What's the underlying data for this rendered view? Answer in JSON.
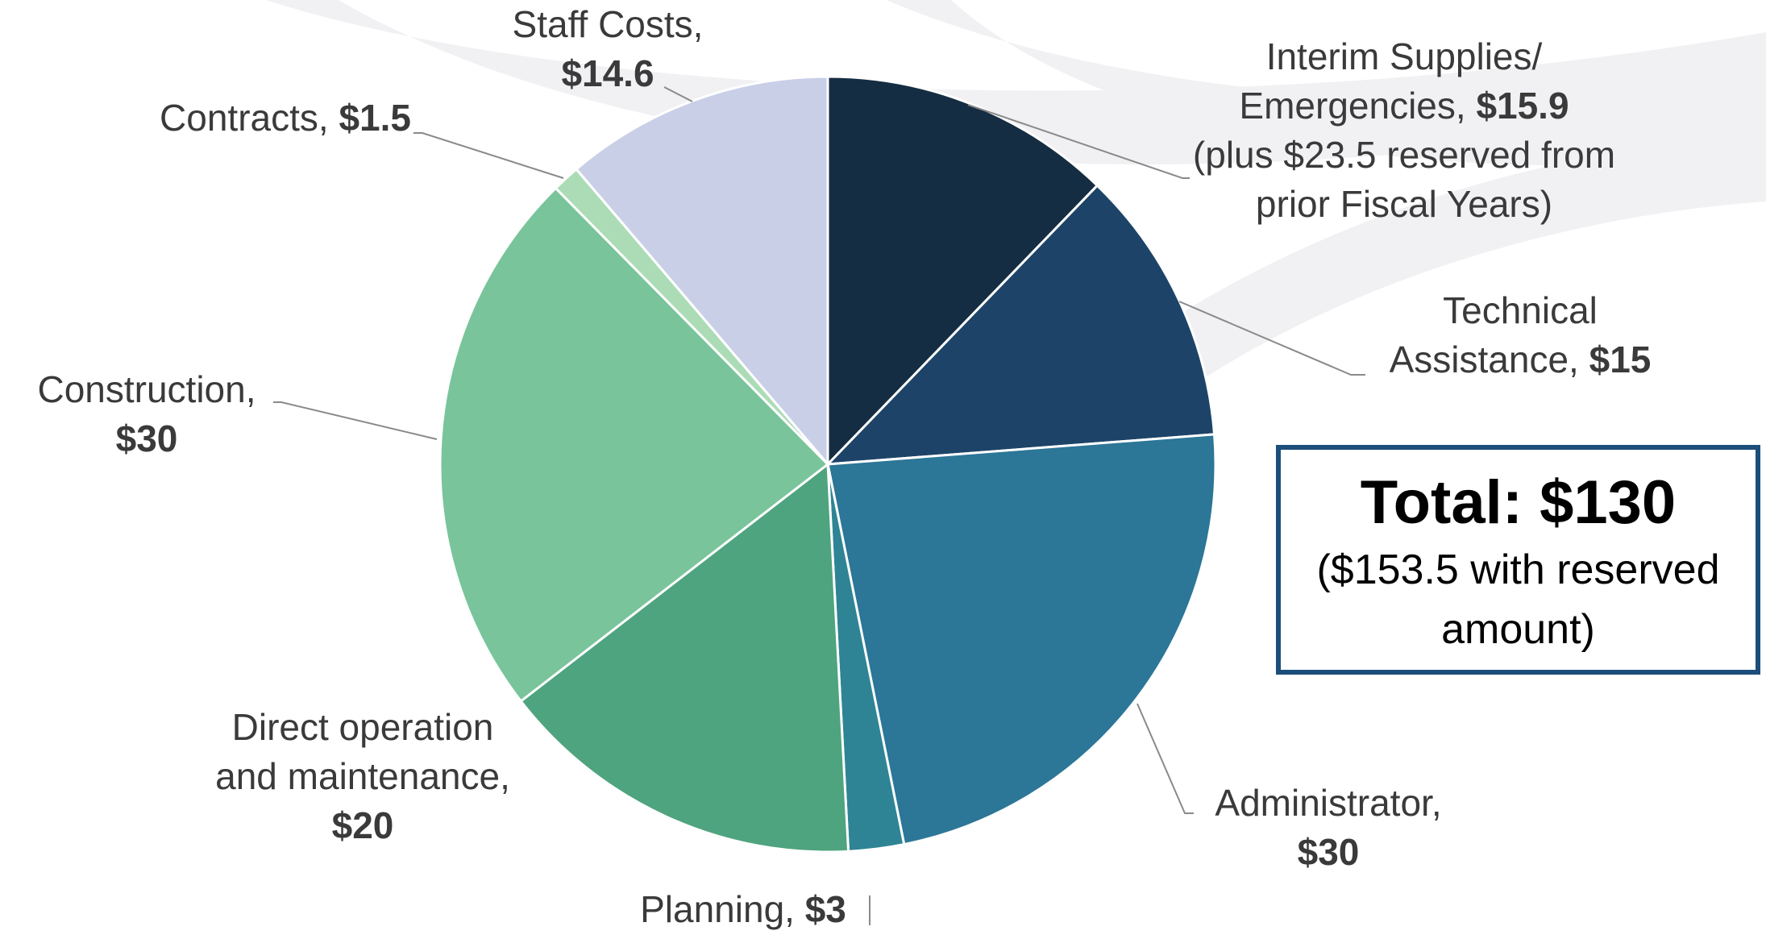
{
  "chart_data": {
    "type": "pie",
    "categories": [
      "Interim Supplies/ Emergencies,",
      "Technical Assistance,",
      "Administrator,",
      "Planning,",
      "Direct operation and maintenance,",
      "Construction,",
      "Contracts,",
      "Staff Costs,"
    ],
    "values": [
      15.9,
      15,
      30,
      3,
      20,
      30,
      1.5,
      14.6
    ],
    "value_labels": [
      "$15.9",
      "$15",
      "$30",
      "$3",
      "$20",
      "$30",
      "$1.5",
      "$14.6"
    ],
    "colors": [
      "#152d42",
      "#1d4468",
      "#2c7697",
      "#2e8494",
      "#4ea47e",
      "#79c49a",
      "#acdcb5",
      "#cacfe8"
    ],
    "annotations": [
      "(plus $23.5 reserved from prior Fiscal Years)"
    ],
    "total": {
      "label": "Total: $130",
      "note": "($153.5 with reserved amount)"
    }
  }
}
